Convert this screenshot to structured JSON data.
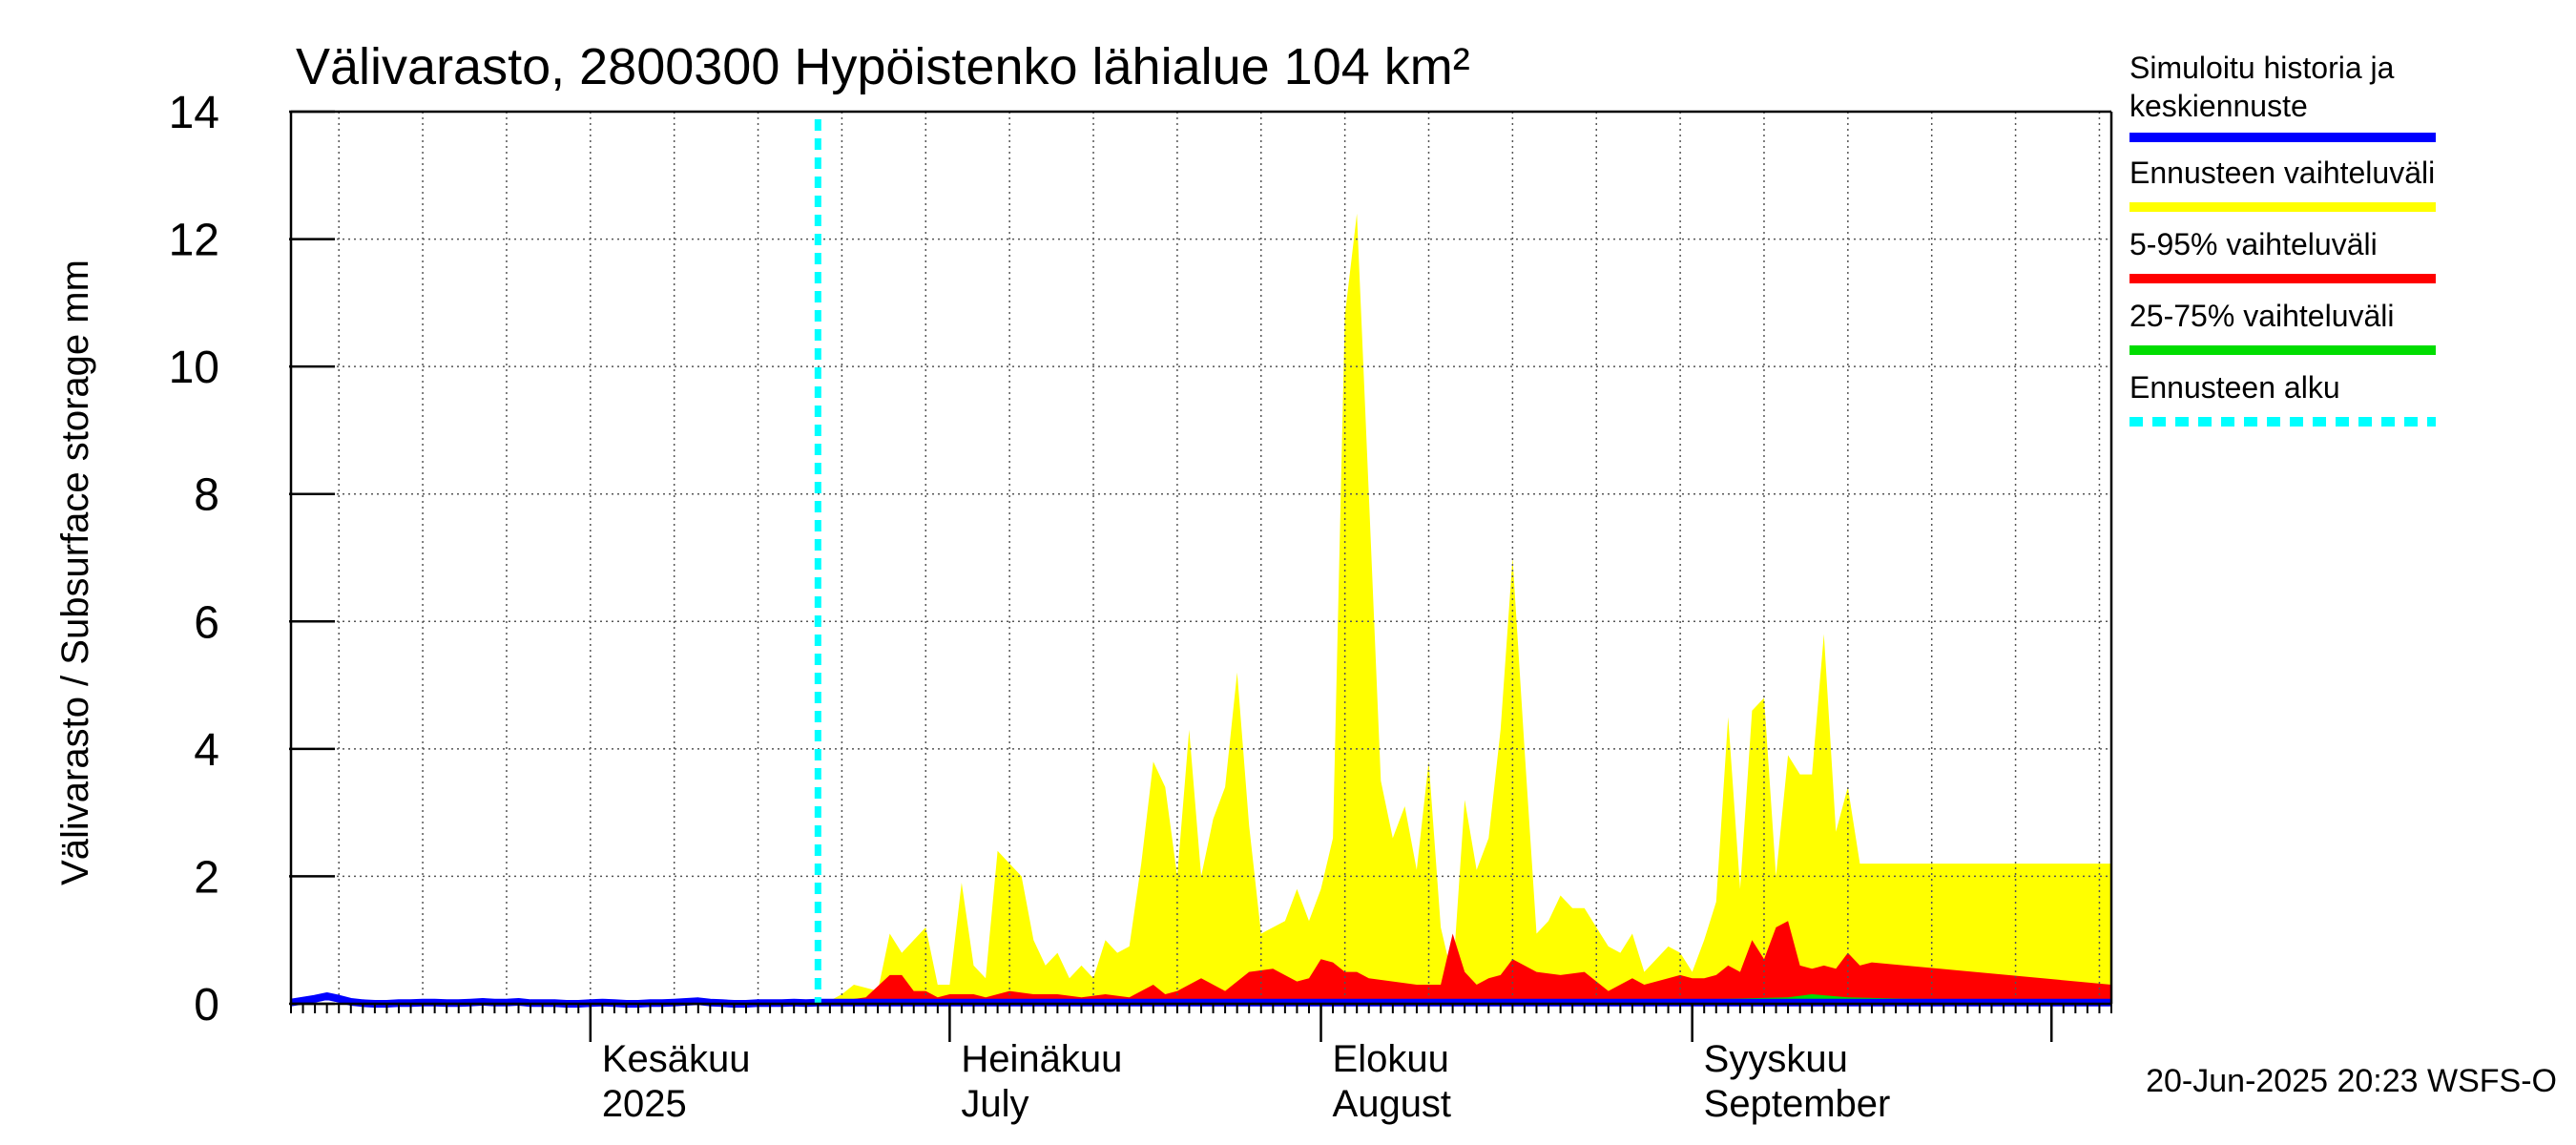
{
  "chart_data": {
    "type": "area",
    "title": "Välivarasto, 2800300 Hypöistenko lähialue 104 km²",
    "ylabel": "Välivarasto / Subsurface storage  mm",
    "xlabel": "",
    "ylim": [
      0,
      14
    ],
    "y_ticks": [
      0,
      2,
      4,
      6,
      8,
      10,
      12,
      14
    ],
    "y_tick_labels": [
      "0",
      "2",
      "4",
      "6",
      "8",
      "10",
      "12",
      "14"
    ],
    "x_range_days": [
      0,
      152
    ],
    "x_origin_date": "2025-05-07",
    "month_starts_days": [
      25,
      55,
      86,
      117,
      147
    ],
    "month_labels": [
      {
        "day": 25,
        "line1": "Kesäkuu",
        "line2": "2025"
      },
      {
        "day": 55,
        "line1": "Heinäkuu",
        "line2": "July"
      },
      {
        "day": 86,
        "line1": "Elokuu",
        "line2": "August"
      },
      {
        "day": 117,
        "line1": "Syyskuu",
        "line2": "September"
      }
    ],
    "forecast_start_day": 44,
    "footer": "20-Jun-2025 20:23 WSFS-O",
    "colors": {
      "history": "#0000ff",
      "range_full": "#ffff00",
      "range_5_95": "#ff0000",
      "range_25_75": "#00dd00",
      "forecast_start": "#00ffff",
      "grid": "#555555"
    },
    "legend": [
      {
        "label_line1": "Simuloitu historia ja",
        "label_line2": "keskiennuste",
        "color": "#0000ff",
        "style": "solid"
      },
      {
        "label_line1": "Ennusteen vaihteluväli",
        "label_line2": "",
        "color": "#ffff00",
        "style": "solid"
      },
      {
        "label_line1": "5-95% vaihteluväli",
        "label_line2": "",
        "color": "#ff0000",
        "style": "solid"
      },
      {
        "label_line1": "25-75% vaihteluväli",
        "label_line2": "",
        "color": "#00dd00",
        "style": "solid"
      },
      {
        "label_line1": "Ennusteen alku",
        "label_line2": "",
        "color": "#00ffff",
        "style": "dashed"
      }
    ],
    "series": [
      {
        "name": "Simuloitu historia ja keskiennuste",
        "x": [
          0,
          1,
          2,
          3,
          4,
          5,
          6,
          7,
          8,
          9,
          10,
          11,
          12,
          13,
          14,
          15,
          16,
          17,
          18,
          19,
          20,
          21,
          22,
          23,
          24,
          25,
          26,
          27,
          28,
          29,
          30,
          31,
          32,
          33,
          34,
          35,
          36,
          37,
          38,
          39,
          40,
          41,
          42,
          43,
          44,
          48,
          52,
          56,
          60,
          66,
          72,
          80,
          88,
          96,
          104,
          112,
          120,
          128,
          136,
          144,
          148,
          152
        ],
        "values": [
          0.02,
          0.05,
          0.08,
          0.12,
          0.08,
          0.03,
          0.01,
          0.0,
          0.0,
          0.01,
          0.01,
          0.02,
          0.02,
          0.01,
          0.01,
          0.02,
          0.03,
          0.02,
          0.02,
          0.03,
          0.01,
          0.01,
          0.01,
          0.0,
          0.0,
          0.01,
          0.02,
          0.01,
          0.0,
          0.0,
          0.01,
          0.01,
          0.02,
          0.03,
          0.04,
          0.02,
          0.01,
          0.0,
          0.0,
          0.01,
          0.01,
          0.01,
          0.02,
          0.01,
          0.02,
          0.02,
          0.02,
          0.02,
          0.02,
          0.02,
          0.02,
          0.02,
          0.02,
          0.02,
          0.02,
          0.02,
          0.02,
          0.02,
          0.02,
          0.02,
          0.02,
          0.02
        ]
      },
      {
        "name": "Ennusteen vaihteluväli (max)",
        "x": [
          44,
          45,
          46,
          47,
          48,
          49,
          50,
          51,
          52,
          53,
          54,
          55,
          56,
          57,
          58,
          59,
          60,
          61,
          62,
          63,
          64,
          65,
          66,
          67,
          68,
          69,
          70,
          71,
          72,
          73,
          74,
          75,
          76,
          77,
          78,
          79,
          80,
          81,
          82,
          83,
          84,
          85,
          86,
          87,
          88,
          89,
          90,
          91,
          92,
          93,
          94,
          95,
          96,
          97,
          98,
          99,
          100,
          101,
          102,
          103,
          104,
          105,
          106,
          107,
          108,
          109,
          110,
          111,
          112,
          113,
          114,
          115,
          116,
          117,
          118,
          119,
          120,
          121,
          122,
          123,
          124,
          125,
          126,
          127,
          128,
          129,
          130,
          131,
          132,
          133,
          134,
          135,
          136,
          137,
          138,
          139,
          140,
          141,
          142,
          143,
          144,
          145,
          146,
          147,
          148,
          149,
          150,
          151,
          152
        ],
        "values": [
          0.05,
          0.05,
          0.15,
          0.3,
          0.25,
          0.2,
          1.1,
          0.8,
          1.0,
          1.2,
          0.3,
          0.3,
          1.9,
          0.6,
          0.4,
          2.4,
          2.2,
          2.0,
          1.0,
          0.6,
          0.8,
          0.4,
          0.6,
          0.4,
          1.0,
          0.8,
          0.9,
          2.2,
          3.8,
          3.4,
          2.0,
          4.3,
          2.0,
          2.9,
          3.4,
          5.2,
          2.8,
          1.1,
          1.2,
          1.3,
          1.8,
          1.3,
          1.8,
          2.6,
          10.8,
          12.4,
          8.0,
          3.5,
          2.6,
          3.1,
          2.1,
          3.8,
          1.2,
          0.4,
          3.2,
          2.1,
          2.6,
          4.3,
          7.0,
          4.0,
          1.1,
          1.3,
          1.7,
          1.5,
          1.5,
          1.2,
          0.9,
          0.8,
          1.1,
          0.5,
          0.7,
          0.9,
          0.8,
          0.5,
          1.0,
          1.6,
          4.5,
          1.8,
          4.6,
          4.8,
          2.0,
          3.9,
          3.6,
          3.6,
          5.8,
          2.7,
          3.4,
          2.2,
          2.2,
          2.2,
          2.2,
          2.2,
          2.2,
          2.2,
          2.2,
          2.2,
          2.2,
          2.2,
          2.2,
          2.2,
          2.2,
          2.2,
          2.2,
          2.2,
          2.2,
          2.2,
          2.2,
          2.2,
          2.2
        ]
      },
      {
        "name": "5-95% vaihteluväli (upper)",
        "x": [
          44,
          46,
          48,
          50,
          51,
          52,
          53,
          54,
          55,
          56,
          57,
          58,
          60,
          62,
          64,
          66,
          68,
          70,
          72,
          73,
          74,
          76,
          78,
          80,
          82,
          84,
          85,
          86,
          87,
          88,
          89,
          90,
          92,
          94,
          96,
          97,
          98,
          99,
          100,
          101,
          102,
          104,
          106,
          108,
          110,
          112,
          113,
          114,
          115,
          116,
          117,
          118,
          119,
          120,
          121,
          122,
          123,
          124,
          125,
          126,
          127,
          128,
          129,
          130,
          131,
          132,
          152
        ],
        "values": [
          0.02,
          0.05,
          0.1,
          0.45,
          0.45,
          0.2,
          0.2,
          0.1,
          0.15,
          0.15,
          0.15,
          0.1,
          0.2,
          0.15,
          0.15,
          0.1,
          0.15,
          0.1,
          0.3,
          0.15,
          0.2,
          0.4,
          0.2,
          0.5,
          0.55,
          0.35,
          0.4,
          0.7,
          0.65,
          0.5,
          0.5,
          0.4,
          0.35,
          0.3,
          0.3,
          1.1,
          0.5,
          0.3,
          0.4,
          0.45,
          0.7,
          0.5,
          0.45,
          0.5,
          0.2,
          0.4,
          0.3,
          0.35,
          0.4,
          0.45,
          0.4,
          0.4,
          0.45,
          0.6,
          0.5,
          1.0,
          0.7,
          1.2,
          1.3,
          0.6,
          0.55,
          0.6,
          0.55,
          0.8,
          0.6,
          0.65,
          0.3
        ]
      },
      {
        "name": "25-75% vaihteluväli (upper)",
        "x": [
          44,
          60,
          80,
          100,
          110,
          115,
          120,
          125,
          127,
          130,
          135,
          152
        ],
        "values": [
          0.02,
          0.05,
          0.04,
          0.05,
          0.05,
          0.06,
          0.08,
          0.1,
          0.15,
          0.1,
          0.08,
          0.05
        ]
      }
    ]
  }
}
